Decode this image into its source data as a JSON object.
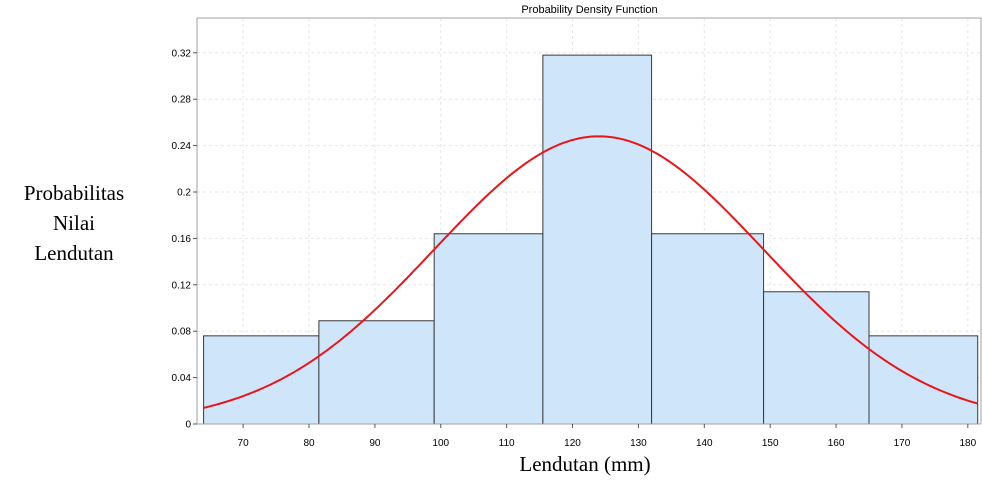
{
  "chart_data": {
    "type": "bar",
    "title": "Probability Density Function",
    "xlabel": "Lendutan (mm)",
    "ylabel_lines": [
      "Probabilitas",
      "Nilai",
      "Lendutan"
    ],
    "xlim": [
      63,
      182
    ],
    "ylim": [
      0,
      0.35
    ],
    "x_ticks": [
      70,
      80,
      90,
      100,
      110,
      120,
      130,
      140,
      150,
      160,
      170,
      180
    ],
    "y_ticks": [
      0,
      0.04,
      0.08,
      0.12,
      0.16,
      0.2,
      0.24,
      0.28,
      0.32
    ],
    "y_tick_labels": [
      "0",
      "0.04",
      "0.08",
      "0.12",
      "0.16",
      "0.2",
      "0.24",
      "0.28",
      "0.32"
    ],
    "grid": true,
    "bins": [
      {
        "from": 64.0,
        "to": 81.5,
        "value": 0.076
      },
      {
        "from": 81.5,
        "to": 99.0,
        "value": 0.089
      },
      {
        "from": 99.0,
        "to": 115.5,
        "value": 0.164
      },
      {
        "from": 115.5,
        "to": 132.0,
        "value": 0.318
      },
      {
        "from": 132.0,
        "to": 149.0,
        "value": 0.164
      },
      {
        "from": 149.0,
        "to": 165.0,
        "value": 0.114
      },
      {
        "from": 165.0,
        "to": 181.5,
        "value": 0.076
      }
    ],
    "pdf_curve": {
      "type": "normal",
      "mean": 124.0,
      "std": 25.0,
      "peak": 0.248,
      "x_range": [
        64.0,
        181.5
      ]
    },
    "colors": {
      "bar_fill": "#cfe5fa",
      "bar_stroke": "#3a3a3a",
      "curve": "#e8161b",
      "grid": "#e6e6e6",
      "axis": "#a0a0a0"
    }
  }
}
